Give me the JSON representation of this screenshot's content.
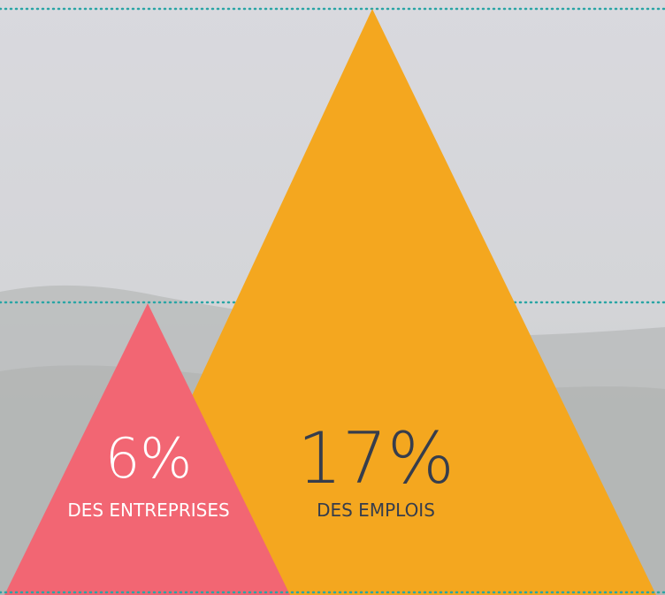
{
  "items": [
    {
      "value": "6%",
      "label": "DES ENTREPRISES"
    },
    {
      "value": "17%",
      "label": "DES EMPLOIS"
    }
  ]
}
